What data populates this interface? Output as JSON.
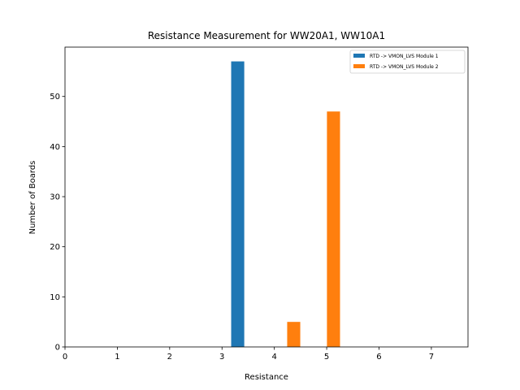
{
  "chart_data": {
    "type": "bar",
    "title": "Resistance Measurement for WW20A1, WW10A1",
    "xlabel": "Resistance",
    "ylabel": "Number of Boards",
    "xlim": [
      0,
      7.7
    ],
    "ylim": [
      0,
      59.85
    ],
    "xticks": [
      0,
      1,
      2,
      3,
      4,
      5,
      6,
      7
    ],
    "yticks": [
      0,
      10,
      20,
      30,
      40,
      50
    ],
    "bar_width": 0.25,
    "legend_position": "top-right",
    "series": [
      {
        "name": "RTD -> VMON_LVS Module 1",
        "color": "#1f77b4",
        "bars": [
          {
            "x": 3.3,
            "value": 57
          }
        ]
      },
      {
        "name": "RTD -> VMON_LVS Module 2",
        "color": "#ff7f0e",
        "bars": [
          {
            "x": 4.37,
            "value": 5
          },
          {
            "x": 5.13,
            "value": 47
          }
        ]
      }
    ]
  }
}
